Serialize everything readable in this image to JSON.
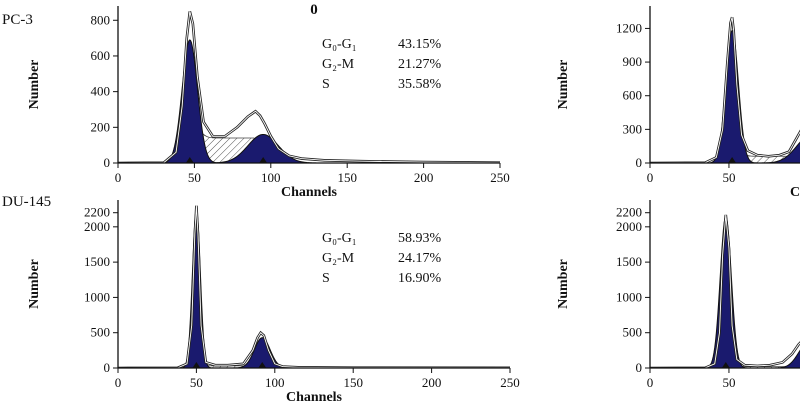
{
  "chart_data": [
    {
      "type": "area",
      "panel_label": "PC-3",
      "treatment_label": "0",
      "xlabel": "Channels",
      "ylabel": "Number",
      "xlim": [
        0,
        250
      ],
      "ylim": [
        0,
        880
      ],
      "x_ticks": [
        "0",
        "50",
        "100",
        "150",
        "200",
        "250"
      ],
      "y_ticks": [
        "0",
        "200",
        "400",
        "600",
        "800"
      ],
      "stats": [
        {
          "phase": "G₀-G₁",
          "value": "43.15%"
        },
        {
          "phase": "G₂-M",
          "value": "21.27%"
        },
        {
          "phase": "S",
          "value": "35.58%"
        }
      ],
      "g1_peak": {
        "x": 47,
        "y": 690,
        "sd": 5
      },
      "g2_peak": {
        "x": 95,
        "y": 160,
        "sd": 10
      },
      "s_phase": {
        "x0": 47,
        "x1": 95,
        "level": 140
      },
      "total_series": {
        "x": [
          0,
          30,
          38,
          42,
          45,
          47,
          49,
          52,
          56,
          62,
          70,
          78,
          85,
          90,
          93,
          96,
          100,
          105,
          112,
          120,
          135,
          160,
          200,
          250
        ],
        "y": [
          0,
          2,
          60,
          320,
          700,
          850,
          780,
          480,
          230,
          150,
          150,
          200,
          260,
          290,
          265,
          220,
          150,
          80,
          40,
          25,
          15,
          10,
          5,
          2
        ]
      }
    },
    {
      "type": "area",
      "panel_label": "DU-145",
      "treatment_label": "",
      "xlabel": "Channels",
      "ylabel": "Number",
      "xlim": [
        0,
        250
      ],
      "ylim": [
        0,
        2380
      ],
      "x_ticks": [
        "0",
        "50",
        "100",
        "150",
        "200",
        "250"
      ],
      "y_ticks": [
        "0",
        "500",
        "1000",
        "1500",
        "2000",
        "2200"
      ],
      "stats": [
        {
          "phase": "G₀-G₁",
          "value": "58.93%"
        },
        {
          "phase": "G₂-M",
          "value": "24.17%"
        },
        {
          "phase": "S",
          "value": "16.90%"
        }
      ],
      "g1_peak": {
        "x": 50,
        "y": 2250,
        "sd": 2.5
      },
      "g2_peak": {
        "x": 92,
        "y": 430,
        "sd": 5
      },
      "s_phase": {
        "x0": 50,
        "x1": 92,
        "level": 30
      },
      "total_series": {
        "x": [
          0,
          38,
          44,
          47,
          49,
          50,
          51,
          53,
          56,
          62,
          70,
          80,
          86,
          89,
          91,
          93,
          96,
          100,
          105,
          115,
          150,
          250
        ],
        "y": [
          0,
          2,
          60,
          600,
          1900,
          2300,
          1900,
          600,
          80,
          40,
          40,
          60,
          250,
          430,
          500,
          460,
          250,
          60,
          20,
          10,
          5,
          2
        ]
      }
    },
    {
      "type": "area",
      "panel_label": "",
      "treatment_label": "",
      "xlabel": "C",
      "ylabel": "Number",
      "xlim": [
        0,
        100
      ],
      "ylim": [
        0,
        1400
      ],
      "x_ticks": [
        "0",
        "50",
        "10"
      ],
      "y_ticks": [
        "0",
        "300",
        "600",
        "900",
        "1200"
      ],
      "stats": [],
      "g1_peak": {
        "x": 52,
        "y": 1180,
        "sd": 4
      },
      "g2_peak": {
        "x": 102,
        "y": 250,
        "sd": 9
      },
      "s_phase": {
        "x0": 52,
        "x1": 102,
        "level": 60
      },
      "total_series": {
        "x": [
          0,
          35,
          42,
          46,
          49,
          51,
          52,
          53,
          55,
          58,
          62,
          68,
          75,
          82,
          88,
          92,
          96,
          100
        ],
        "y": [
          0,
          3,
          50,
          300,
          900,
          1250,
          1300,
          1180,
          700,
          250,
          110,
          70,
          60,
          70,
          100,
          200,
          300,
          360
        ]
      }
    },
    {
      "type": "area",
      "panel_label": "",
      "treatment_label": "",
      "xlabel": "",
      "ylabel": "Number",
      "xlim": [
        0,
        100
      ],
      "ylim": [
        0,
        2380
      ],
      "x_ticks": [
        "0",
        "50",
        "1"
      ],
      "y_ticks": [
        "0",
        "500",
        "1000",
        "1500",
        "2000",
        "2200"
      ],
      "stats": [],
      "g1_peak": {
        "x": 48,
        "y": 2150,
        "sd": 3.5
      },
      "g2_peak": {
        "x": 100,
        "y": 350,
        "sd": 6
      },
      "s_phase": {
        "x0": 48,
        "x1": 100,
        "level": 20
      },
      "total_series": {
        "x": [
          0,
          35,
          41,
          44,
          46,
          48,
          50,
          52,
          55,
          60,
          68,
          76,
          84,
          90,
          94,
          97,
          100
        ],
        "y": [
          0,
          3,
          60,
          500,
          1600,
          2170,
          1700,
          600,
          120,
          40,
          30,
          40,
          80,
          200,
          330,
          400,
          380
        ]
      }
    }
  ]
}
